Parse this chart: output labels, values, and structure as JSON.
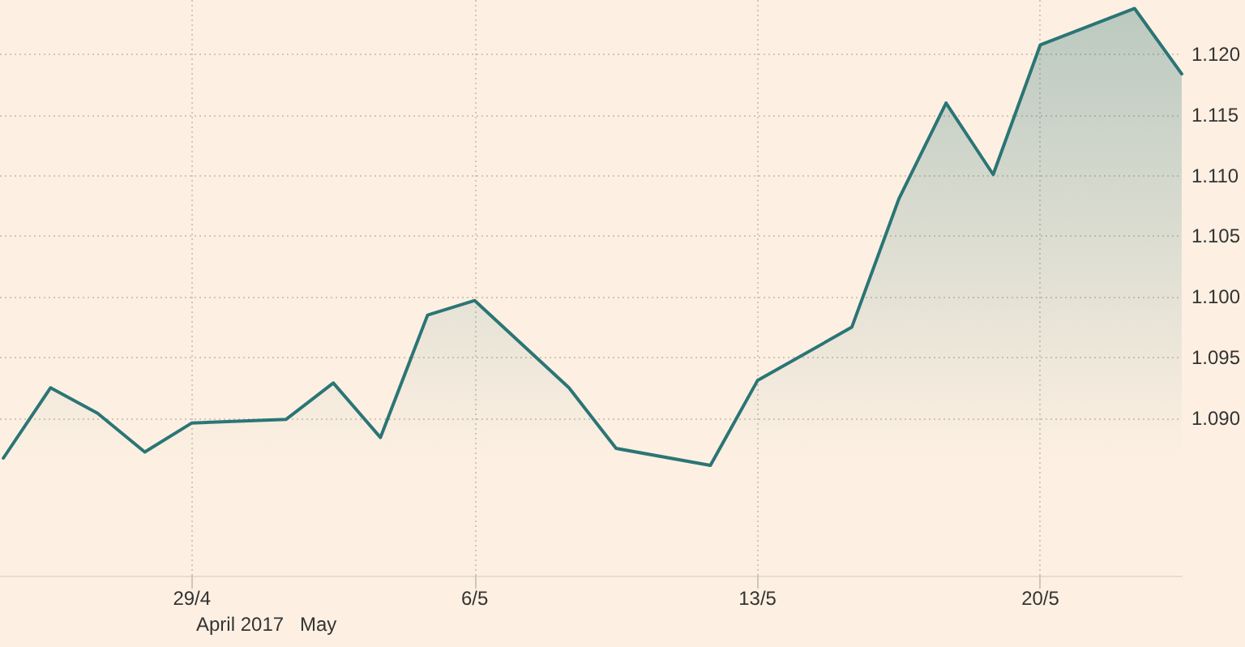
{
  "chart_data": {
    "type": "area",
    "x": [
      "2017-04-24T08:00",
      "2017-04-25T12:00",
      "2017-04-26T16:00",
      "2017-04-27T20:00",
      "2017-04-29T00:00",
      "2017-05-01T08:00",
      "2017-05-02T12:00",
      "2017-05-03T16:00",
      "2017-05-04T20:00",
      "2017-05-06T00:00",
      "2017-05-08T08:00",
      "2017-05-09T12:00",
      "2017-05-11T20:00",
      "2017-05-13T00:00",
      "2017-05-15T08:00",
      "2017-05-16T12:00",
      "2017-05-17T16:00",
      "2017-05-18T20:00",
      "2017-05-20T00:00",
      "2017-05-22T08:00",
      "2017-05-23T12:00"
    ],
    "series": [
      {
        "color": "#2b7575",
        "values": [
          1.0867,
          1.0925,
          1.0904,
          1.0872,
          1.0896,
          1.0899,
          1.0929,
          1.0884,
          1.0985,
          1.0997,
          1.0925,
          1.0875,
          1.0861,
          1.0931,
          1.0975,
          1.1081,
          1.116,
          1.1101,
          1.1208,
          1.1238,
          1.1184
        ]
      }
    ],
    "xlim": [
      "2017-04-24T06:00",
      "2017-05-23T12:00"
    ],
    "xticks": [
      {
        "value": "2017-04-29",
        "label": "29/4"
      },
      {
        "value": "2017-05-06",
        "label": "6/5"
      },
      {
        "value": "2017-05-13",
        "label": "13/5"
      },
      {
        "value": "2017-05-20",
        "label": "20/5"
      }
    ],
    "ylim": [
      1.077,
      1.1245
    ],
    "yticks": [
      {
        "value": 1.09,
        "label": "1.090"
      },
      {
        "value": 1.095,
        "label": "1.095"
      },
      {
        "value": 1.1,
        "label": "1.100"
      },
      {
        "value": 1.105,
        "label": "1.105"
      },
      {
        "value": 1.11,
        "label": "1.110"
      },
      {
        "value": 1.115,
        "label": "1.115"
      },
      {
        "value": 1.12,
        "label": "1.120"
      }
    ],
    "annotations": [
      "April 2017",
      "May"
    ],
    "grid": true,
    "marker": "none",
    "line_style": "solid"
  }
}
